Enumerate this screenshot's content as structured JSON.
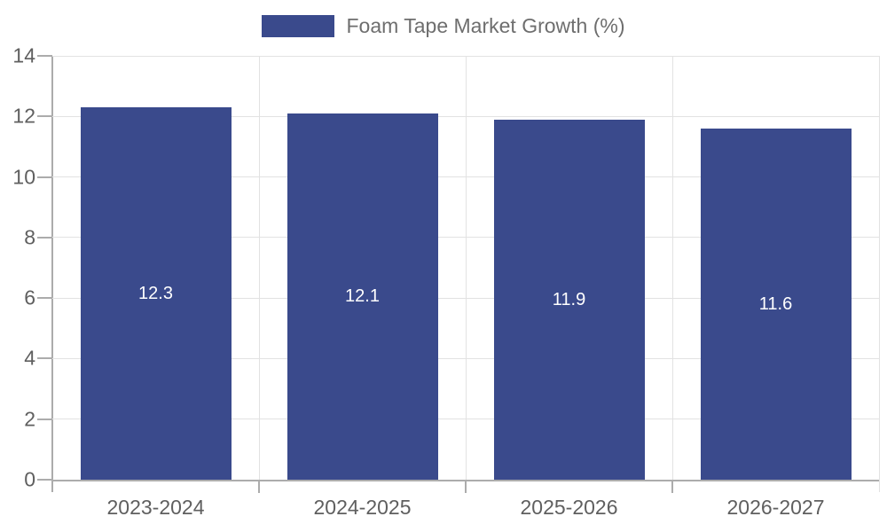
{
  "chart_data": {
    "type": "bar",
    "title": "Foam Tape Market Growth (%)",
    "legend": [
      "Foam Tape Market Growth (%)"
    ],
    "legend_position": "top-center",
    "categories": [
      "2023-2024",
      "2024-2025",
      "2025-2026",
      "2026-2027"
    ],
    "values": [
      12.3,
      12.1,
      11.9,
      11.6
    ],
    "value_labels": [
      "12.3",
      "12.1",
      "11.9",
      "11.6"
    ],
    "xlabel": "",
    "ylabel": "",
    "ylim": [
      0,
      14
    ],
    "yticks": [
      0,
      2,
      4,
      6,
      8,
      10,
      12,
      14
    ],
    "grid": true
  },
  "colors": {
    "bar": "#3A4A8C",
    "bar_value_label": "#FFFFFF",
    "grid_line": "#E2E2E2",
    "axis_line": "#ACACAC",
    "tick_label": "#5F5F5F",
    "legend_label": "#6E6E6E",
    "background": "#FFFFFF"
  }
}
